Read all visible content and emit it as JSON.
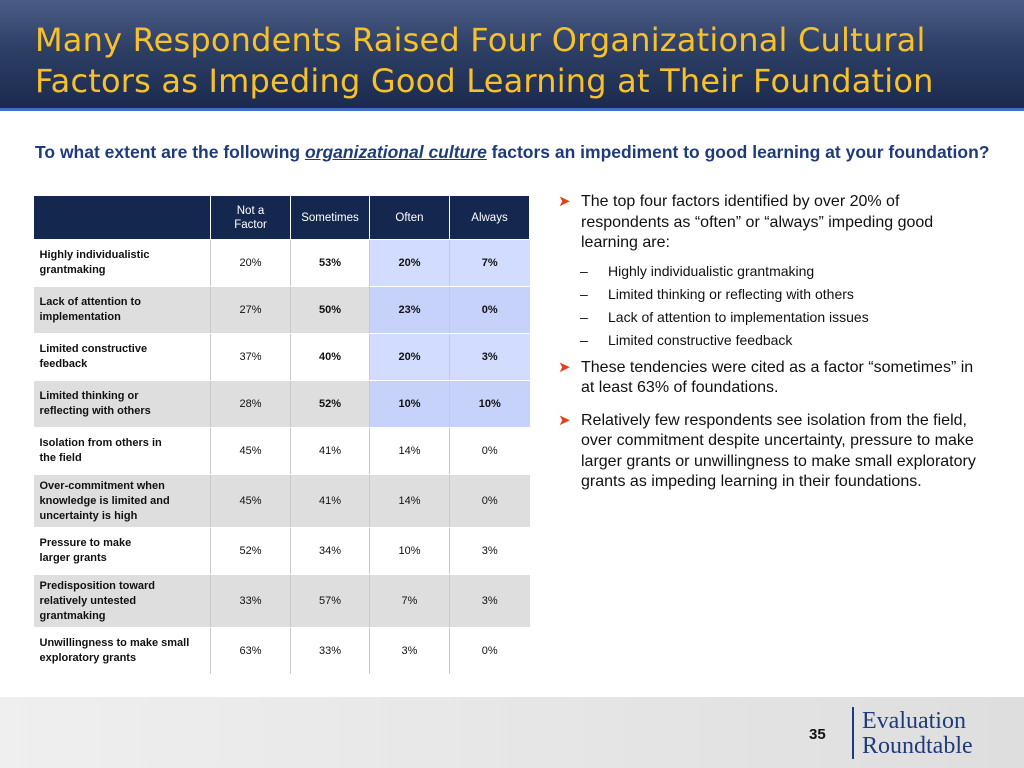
{
  "title": "Many Respondents Raised Four Organizational Cultural Factors as Impeding Good Learning at Their Foundation",
  "question": {
    "before": "To what extent are the following ",
    "emphasis": "organizational culture",
    "after": " factors an impediment to good learning at your foundation?"
  },
  "table": {
    "headers": [
      "",
      "Not a Factor",
      "Sometimes",
      "Often",
      "Always"
    ],
    "rows": [
      {
        "label": "Highly individualistic grantmaking",
        "not_a_factor": "20%",
        "sometimes": "53%",
        "often": "20%",
        "always": "7%"
      },
      {
        "label": "Lack of attention to implementation",
        "not_a_factor": "27%",
        "sometimes": "50%",
        "often": "23%",
        "always": "0%"
      },
      {
        "label": "Limited constructive feedback",
        "not_a_factor": "37%",
        "sometimes": "40%",
        "often": "20%",
        "always": "3%"
      },
      {
        "label": "Limited thinking or reflecting with others",
        "not_a_factor": "28%",
        "sometimes": "52%",
        "often": "10%",
        "always": "10%"
      },
      {
        "label": "Isolation from others in the field",
        "not_a_factor": "45%",
        "sometimes": "41%",
        "often": "14%",
        "always": "0%"
      },
      {
        "label": "Over-commitment when knowledge is limited and uncertainty is high",
        "not_a_factor": "45%",
        "sometimes": "41%",
        "often": "14%",
        "always": "0%"
      },
      {
        "label": "Pressure to make larger grants",
        "not_a_factor": "52%",
        "sometimes": "34%",
        "often": "10%",
        "always": "3%"
      },
      {
        "label": "Predisposition toward relatively untested grantmaking",
        "not_a_factor": "33%",
        "sometimes": "57%",
        "often": "7%",
        "always": "3%"
      },
      {
        "label": "Unwillingness to make small exploratory grants",
        "not_a_factor": "63%",
        "sometimes": "33%",
        "often": "3%",
        "always": "0%"
      }
    ]
  },
  "bullets": [
    "The top four factors identified by over 20% of respondents as “often” or “always” impeding good learning are:",
    "These tendencies were cited as a factor “sometimes” in at least 63% of foundations.",
    "Relatively few respondents see isolation from the field, over commitment despite uncertainty, pressure to make larger grants or unwillingness to make small exploratory grants as impeding learning in their foundations."
  ],
  "sub_bullets": [
    "Highly individualistic grantmaking",
    "Limited thinking or reflecting with others",
    "Lack of attention to implementation issues",
    "Limited constructive feedback"
  ],
  "footer": {
    "page_number": "35",
    "logo_line1": "Evaluation",
    "logo_line2": "Roundtable"
  },
  "colors": {
    "title": "#f7c12c",
    "header_bg": "#1b2a4d",
    "table_header": "#14274e",
    "highlight": "#d2dcff",
    "arrow": "#e3401b"
  }
}
